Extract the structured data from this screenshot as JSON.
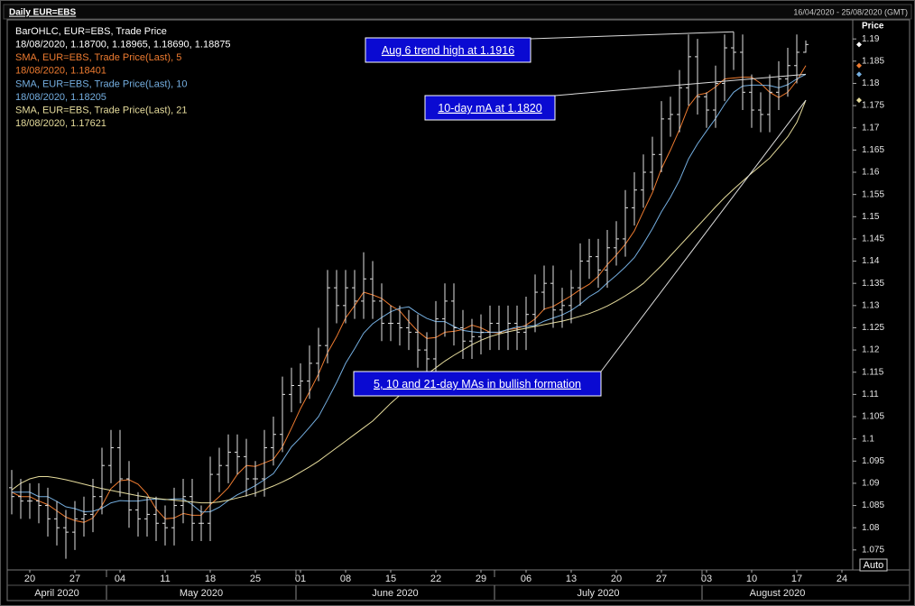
{
  "chart_data": {
    "type": "ohlc",
    "title": "Daily EUR=EBS",
    "date_range": "16/04/2020 - 25/08/2020 (GMT)",
    "y_label": "Price",
    "button": "Auto",
    "ohlc": {
      "name": "BarOHLC, EUR=EBS, Trade Price",
      "last_label": "18/08/2020, 1.18700, 1.18965, 1.18690, 1.18875",
      "color": "#e0e0e0",
      "open": [
        1.089,
        1.087,
        1.086,
        1.086,
        1.085,
        1.082,
        1.08,
        1.079,
        1.082,
        1.083,
        1.087,
        1.094,
        1.098,
        1.091,
        1.084,
        1.082,
        1.083,
        1.081,
        1.08,
        1.085,
        1.087,
        1.081,
        1.081,
        1.092,
        1.094,
        1.097,
        1.096,
        1.091,
        1.091,
        1.098,
        1.101,
        1.11,
        1.112,
        1.113,
        1.117,
        1.121,
        1.134,
        1.13,
        1.134,
        1.131,
        1.136,
        1.131,
        1.126,
        1.126,
        1.125,
        1.124,
        1.12,
        1.118,
        1.127,
        1.131,
        1.125,
        1.122,
        1.123,
        1.124,
        1.126,
        1.124,
        1.126,
        1.124,
        1.128,
        1.133,
        1.135,
        1.129,
        1.13,
        1.134,
        1.14,
        1.141,
        1.138,
        1.143,
        1.145,
        1.152,
        1.156,
        1.16,
        1.164,
        1.172,
        1.173,
        1.179,
        1.186,
        1.177,
        1.174,
        1.18,
        1.188,
        1.187,
        1.178,
        1.174,
        1.173,
        1.178,
        1.181,
        1.184,
        1.187
      ],
      "high": [
        1.093,
        1.091,
        1.09,
        1.09,
        1.089,
        1.086,
        1.084,
        1.086,
        1.087,
        1.091,
        1.098,
        1.102,
        1.102,
        1.095,
        1.088,
        1.087,
        1.087,
        1.085,
        1.089,
        1.091,
        1.091,
        1.085,
        1.096,
        1.098,
        1.101,
        1.101,
        1.1,
        1.095,
        1.102,
        1.105,
        1.114,
        1.116,
        1.117,
        1.121,
        1.125,
        1.138,
        1.138,
        1.138,
        1.138,
        1.142,
        1.14,
        1.135,
        1.13,
        1.13,
        1.129,
        1.128,
        1.124,
        1.131,
        1.135,
        1.135,
        1.129,
        1.127,
        1.128,
        1.13,
        1.13,
        1.13,
        1.13,
        1.132,
        1.137,
        1.139,
        1.139,
        1.134,
        1.138,
        1.144,
        1.145,
        1.145,
        1.147,
        1.149,
        1.156,
        1.16,
        1.164,
        1.168,
        1.176,
        1.177,
        1.183,
        1.191,
        1.19,
        1.178,
        1.184,
        1.191,
        1.1916,
        1.191,
        1.182,
        1.178,
        1.182,
        1.185,
        1.188,
        1.191,
        1.18965
      ],
      "low": [
        1.083,
        1.082,
        1.082,
        1.081,
        1.078,
        1.076,
        1.073,
        1.075,
        1.078,
        1.079,
        1.083,
        1.09,
        1.087,
        1.08,
        1.078,
        1.078,
        1.077,
        1.076,
        1.076,
        1.081,
        1.077,
        1.077,
        1.077,
        1.088,
        1.09,
        1.092,
        1.087,
        1.087,
        1.087,
        1.094,
        1.097,
        1.106,
        1.108,
        1.109,
        1.113,
        1.117,
        1.126,
        1.126,
        1.127,
        1.127,
        1.127,
        1.122,
        1.122,
        1.121,
        1.12,
        1.116,
        1.114,
        1.114,
        1.123,
        1.121,
        1.118,
        1.118,
        1.119,
        1.12,
        1.12,
        1.12,
        1.12,
        1.12,
        1.124,
        1.129,
        1.125,
        1.125,
        1.126,
        1.13,
        1.136,
        1.134,
        1.134,
        1.139,
        1.141,
        1.148,
        1.152,
        1.156,
        1.16,
        1.168,
        1.169,
        1.175,
        1.173,
        1.17,
        1.17,
        1.176,
        1.183,
        1.174,
        1.17,
        1.169,
        1.169,
        1.174,
        1.177,
        1.18,
        1.1869
      ],
      "close": [
        1.087,
        1.086,
        1.086,
        1.085,
        1.082,
        1.08,
        1.079,
        1.082,
        1.083,
        1.087,
        1.094,
        1.098,
        1.091,
        1.084,
        1.082,
        1.083,
        1.081,
        1.08,
        1.085,
        1.087,
        1.081,
        1.081,
        1.092,
        1.094,
        1.097,
        1.096,
        1.091,
        1.091,
        1.098,
        1.101,
        1.11,
        1.112,
        1.113,
        1.117,
        1.121,
        1.134,
        1.13,
        1.134,
        1.131,
        1.136,
        1.131,
        1.126,
        1.126,
        1.125,
        1.124,
        1.12,
        1.118,
        1.127,
        1.131,
        1.125,
        1.122,
        1.123,
        1.124,
        1.126,
        1.124,
        1.126,
        1.124,
        1.128,
        1.133,
        1.135,
        1.129,
        1.13,
        1.134,
        1.14,
        1.141,
        1.138,
        1.143,
        1.145,
        1.152,
        1.156,
        1.16,
        1.164,
        1.172,
        1.173,
        1.179,
        1.186,
        1.177,
        1.174,
        1.18,
        1.188,
        1.187,
        1.178,
        1.174,
        1.173,
        1.178,
        1.181,
        1.184,
        1.187,
        1.18875
      ]
    },
    "series": [
      {
        "name": "SMA, EUR=EBS, Trade Price(Last),  5",
        "last_label": "18/08/2020, 1.18401",
        "color": "#ee7b30",
        "values": [
          1.088,
          1.087,
          1.087,
          1.086,
          1.0852,
          1.0838,
          1.0824,
          1.0816,
          1.0812,
          1.0822,
          1.085,
          1.0888,
          1.0906,
          1.0908,
          1.0898,
          1.0876,
          1.0842,
          1.082,
          1.0822,
          1.0832,
          1.0828,
          1.0828,
          1.0852,
          1.087,
          1.089,
          1.092,
          1.094,
          1.0938,
          1.0946,
          1.0954,
          1.0982,
          1.1024,
          1.1068,
          1.1106,
          1.1146,
          1.1194,
          1.123,
          1.1272,
          1.13,
          1.133,
          1.1324,
          1.1316,
          1.13,
          1.1288,
          1.1264,
          1.1242,
          1.1226,
          1.1228,
          1.124,
          1.1242,
          1.1246,
          1.1256,
          1.125,
          1.124,
          1.1238,
          1.1246,
          1.1248,
          1.1256,
          1.127,
          1.1292,
          1.1298,
          1.131,
          1.1322,
          1.1336,
          1.1348,
          1.1366,
          1.1392,
          1.1414,
          1.1438,
          1.1468,
          1.1512,
          1.1554,
          1.1608,
          1.165,
          1.1696,
          1.1748,
          1.1774,
          1.1778,
          1.1792,
          1.181,
          1.1812,
          1.1814,
          1.1814,
          1.18,
          1.178,
          1.1768,
          1.178,
          1.1806,
          1.18401
        ]
      },
      {
        "name": "SMA, EUR=EBS, Trade Price(Last),  10",
        "last_label": "18/08/2020, 1.18205",
        "color": "#74aee0",
        "values": [
          1.088,
          1.088,
          1.088,
          1.087,
          1.087,
          1.0859,
          1.0847,
          1.0843,
          1.0836,
          1.0837,
          1.0844,
          1.0856,
          1.0861,
          1.086,
          1.086,
          1.0863,
          1.0865,
          1.0863,
          1.0865,
          1.0865,
          1.0852,
          1.0835,
          1.0836,
          1.0846,
          1.0861,
          1.0874,
          1.0884,
          1.0895,
          1.0908,
          1.0922,
          1.0951,
          1.0982,
          1.1003,
          1.1026,
          1.105,
          1.1088,
          1.1127,
          1.117,
          1.1203,
          1.1238,
          1.1259,
          1.1273,
          1.1286,
          1.1294,
          1.1297,
          1.1283,
          1.1271,
          1.1264,
          1.1264,
          1.1253,
          1.1244,
          1.1241,
          1.1239,
          1.124,
          1.124,
          1.1246,
          1.1252,
          1.1253,
          1.1255,
          1.1265,
          1.1272,
          1.1279,
          1.1289,
          1.1303,
          1.132,
          1.1332,
          1.1351,
          1.1368,
          1.1387,
          1.1408,
          1.1439,
          1.1473,
          1.1511,
          1.1544,
          1.1582,
          1.163,
          1.1664,
          1.1693,
          1.1721,
          1.1753,
          1.178,
          1.1794,
          1.1796,
          1.1796,
          1.1795,
          1.179,
          1.1797,
          1.181,
          1.18205
        ]
      },
      {
        "name": "SMA, EUR=EBS, Trade Price(Last),  21",
        "last_label": "18/08/2020, 1.17621",
        "color": "#e6dc9c",
        "values": [
          1.0885,
          1.09,
          1.091,
          1.0915,
          1.0915,
          1.0912,
          1.0908,
          1.0903,
          1.0898,
          1.0893,
          1.0888,
          1.0884,
          1.088,
          1.0876,
          1.0872,
          1.0869,
          1.0866,
          1.0864,
          1.0862,
          1.086,
          1.0858,
          1.0856,
          1.0856,
          1.0858,
          1.0862,
          1.0867,
          1.0872,
          1.0878,
          1.0886,
          1.0894,
          1.0903,
          1.0913,
          1.0925,
          1.0937,
          1.095,
          1.0965,
          1.098,
          1.0995,
          1.101,
          1.1025,
          1.104,
          1.106,
          1.108,
          1.1098,
          1.1115,
          1.113,
          1.1145,
          1.116,
          1.1175,
          1.1188,
          1.12,
          1.1212,
          1.1222,
          1.123,
          1.1236,
          1.1241,
          1.1245,
          1.1249,
          1.1253,
          1.1257,
          1.1261,
          1.1265,
          1.127,
          1.1276,
          1.1282,
          1.129,
          1.1299,
          1.131,
          1.1322,
          1.1335,
          1.135,
          1.137,
          1.139,
          1.1412,
          1.1434,
          1.1456,
          1.1478,
          1.15,
          1.1522,
          1.1543,
          1.1562,
          1.158,
          1.1598,
          1.1615,
          1.1632,
          1.1656,
          1.168,
          1.1712,
          1.17621
        ]
      }
    ],
    "annotations": [
      "Aug 6 trend high at 1.1916",
      "10-day mA at 1.1820",
      "5, 10 and 21-day MAs in bullish formation "
    ],
    "xlim": [
      -0.5,
      93.2
    ],
    "xticks": [
      {
        "value": 2,
        "label": "20"
      },
      {
        "value": 7,
        "label": "27"
      },
      {
        "value": 12,
        "label": "04"
      },
      {
        "value": 17,
        "label": "11"
      },
      {
        "value": 22,
        "label": "18"
      },
      {
        "value": 27,
        "label": "25"
      },
      {
        "value": 32,
        "label": "01"
      },
      {
        "value": 37,
        "label": "08"
      },
      {
        "value": 42,
        "label": "15"
      },
      {
        "value": 47,
        "label": "22"
      },
      {
        "value": 52,
        "label": "29"
      },
      {
        "value": 57,
        "label": "06"
      },
      {
        "value": 62,
        "label": "13"
      },
      {
        "value": 67,
        "label": "20"
      },
      {
        "value": 72,
        "label": "27"
      },
      {
        "value": 77,
        "label": "03"
      },
      {
        "value": 82,
        "label": "10"
      },
      {
        "value": 87,
        "label": "17"
      },
      {
        "value": 92,
        "label": "24"
      }
    ],
    "months": [
      {
        "value": 0,
        "label": "April 2020"
      },
      {
        "value": 11,
        "label": "May 2020"
      },
      {
        "value": 32,
        "label": "June 2020"
      },
      {
        "value": 54,
        "label": "July 2020"
      },
      {
        "value": 77,
        "label": "August 2020"
      }
    ],
    "ylim": [
      1.0705,
      1.1943
    ],
    "yticks": [
      1.075,
      1.08,
      1.085,
      1.09,
      1.095,
      1.1,
      1.105,
      1.11,
      1.115,
      1.12,
      1.125,
      1.13,
      1.135,
      1.14,
      1.145,
      1.15,
      1.155,
      1.16,
      1.165,
      1.17,
      1.175,
      1.18,
      1.185,
      1.19
    ]
  }
}
